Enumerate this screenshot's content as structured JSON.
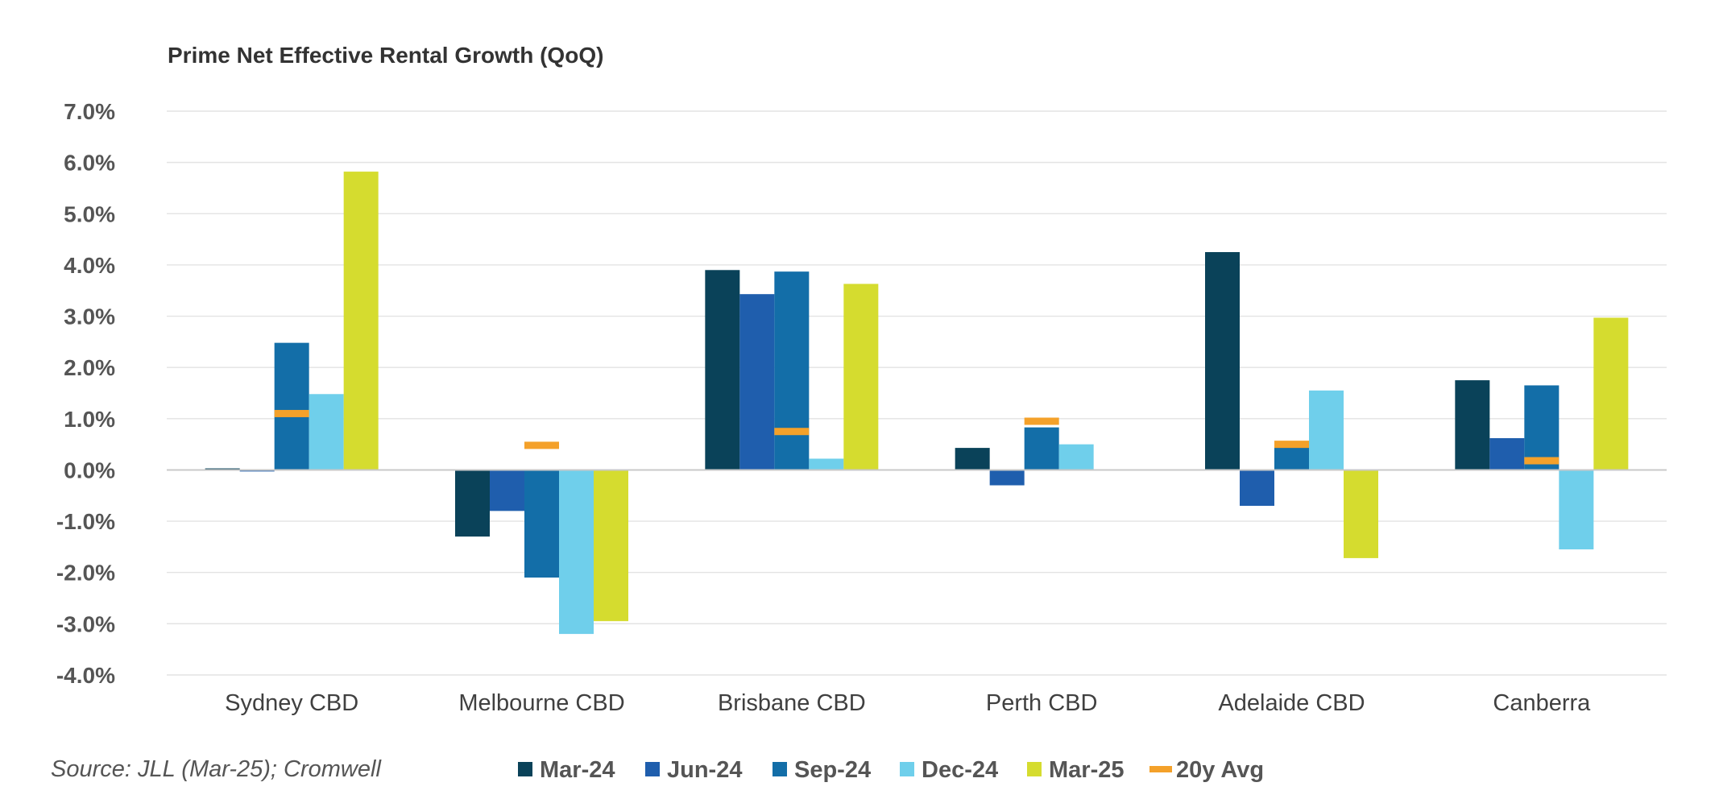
{
  "chart_data": {
    "type": "bar",
    "title": "Prime Net Effective Rental Growth (QoQ)",
    "categories": [
      "Sydney CBD",
      "Melbourne CBD",
      "Brisbane CBD",
      "Perth CBD",
      "Adelaide CBD",
      "Canberra"
    ],
    "series": [
      {
        "name": "Mar-24",
        "color": "#0a4259",
        "values": [
          0.03,
          -1.3,
          3.9,
          0.43,
          4.25,
          1.75
        ]
      },
      {
        "name": "Jun-24",
        "color": "#1f5ead",
        "values": [
          -0.03,
          -0.8,
          3.43,
          -0.3,
          -0.7,
          0.62
        ]
      },
      {
        "name": "Sep-24",
        "color": "#136ea8",
        "values": [
          2.48,
          -2.1,
          3.87,
          0.83,
          0.45,
          1.65
        ]
      },
      {
        "name": "Dec-24",
        "color": "#6fcfeb",
        "values": [
          1.48,
          -3.2,
          0.22,
          0.5,
          1.55,
          -1.55
        ]
      },
      {
        "name": "Mar-25",
        "color": "#d5dc2f",
        "values": [
          5.82,
          -2.95,
          3.63,
          null,
          -1.72,
          2.97
        ]
      }
    ],
    "markers": {
      "name": "20y Avg",
      "color": "#f4a12a",
      "values": [
        1.1,
        0.48,
        0.75,
        0.95,
        0.5,
        0.18
      ]
    },
    "y_ticks": [
      "7.0%",
      "6.0%",
      "5.0%",
      "4.0%",
      "3.0%",
      "2.0%",
      "1.0%",
      "0.0%",
      "-1.0%",
      "-2.0%",
      "-3.0%",
      "-4.0%"
    ],
    "ylim": [
      -4,
      7
    ],
    "ylabel": "",
    "xlabel": "",
    "grid": true,
    "legend": "bottom",
    "source": "Source: JLL (Mar-25); Cromwell"
  }
}
